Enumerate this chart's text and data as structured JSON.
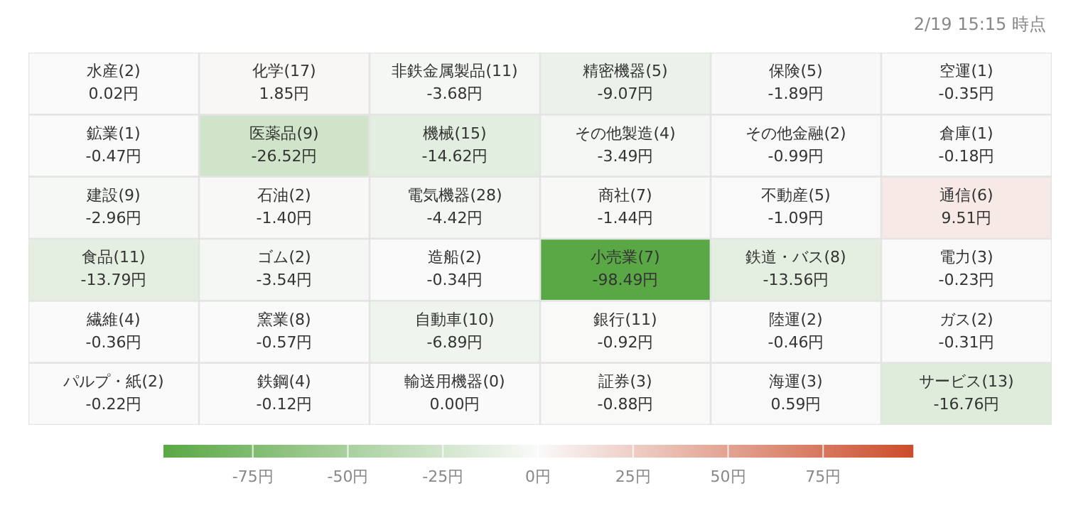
{
  "chart_data": {
    "type": "heatmap",
    "categories": [
      null,
      null,
      null,
      null,
      null,
      null
    ],
    "y_categories": [
      null,
      null,
      null,
      null,
      null,
      null
    ],
    "cells": [
      [
        0.02,
        1.85,
        -3.68,
        -9.07,
        -1.89,
        -0.35
      ],
      [
        -0.47,
        -26.52,
        -14.62,
        -3.49,
        -0.99,
        -0.18
      ],
      [
        -2.96,
        -1.4,
        -4.42,
        -1.44,
        -1.09,
        9.51
      ],
      [
        -13.79,
        -3.54,
        -0.34,
        -98.49,
        -13.56,
        -0.23
      ],
      [
        -0.36,
        -0.57,
        -6.89,
        -0.92,
        -0.46,
        -0.31
      ],
      [
        -0.22,
        -0.12,
        0.0,
        -0.88,
        0.59,
        -16.76
      ]
    ],
    "cell_labels": [
      [
        "水産(2)\n0.02円",
        "化学(17)\n1.85円",
        "非鉄金属製品(11)\n-3.68円",
        "精密機器(5)\n-9.07円",
        "保険(5)\n-1.89円",
        "空運(1)\n-0.35円"
      ],
      [
        "鉱業(1)\n-0.47円",
        "医薬品(9)\n-26.52円",
        "機械(15)\n-14.62円",
        "その他製造(4)\n-3.49円",
        "その他金融(2)\n-0.99円",
        "倉庫(1)\n-0.18円"
      ],
      [
        "建設(9)\n-2.96円",
        "石油(2)\n-1.40円",
        "電気機器(28)\n-4.42円",
        "商社(7)\n-1.44円",
        "不動産(5)\n-1.09円",
        "通信(6)\n9.51円"
      ],
      [
        "食品(11)\n-13.79円",
        "ゴム(2)\n-3.54円",
        "造船(2)\n-0.34円",
        "小売業(7)\n-98.49円",
        "鉄道・バス(8)\n-13.56円",
        "電力(3)\n-0.23円"
      ],
      [
        "繊維(4)\n-0.36円",
        "窯業(8)\n-0.57円",
        "自動車(10)\n-6.89円",
        "銀行(11)\n-0.92円",
        "陸運(2)\n-0.46円",
        "ガス(2)\n-0.31円"
      ],
      [
        "パルプ・紙(2)\n-0.22円",
        "鉄鋼(4)\n-0.12円",
        "輸送用機器(0)\n0.00円",
        "証券(3)\n-0.88円",
        "海運(3)\n0.59円",
        "サービス(13)\n-16.76円"
      ]
    ],
    "clim": [
      -98.5,
      98.5
    ],
    "cticks": [
      {
        "value": -75,
        "label": "-75円"
      },
      {
        "value": -50,
        "label": "-50円"
      },
      {
        "value": -25,
        "label": "-25円"
      },
      {
        "value": 0,
        "label": "0円"
      },
      {
        "value": 25,
        "label": "25円"
      },
      {
        "value": 50,
        "label": "50円"
      },
      {
        "value": 75,
        "label": "75円"
      }
    ],
    "annotations": [
      "2/19 15:15 時点"
    ],
    "legend": false
  }
}
